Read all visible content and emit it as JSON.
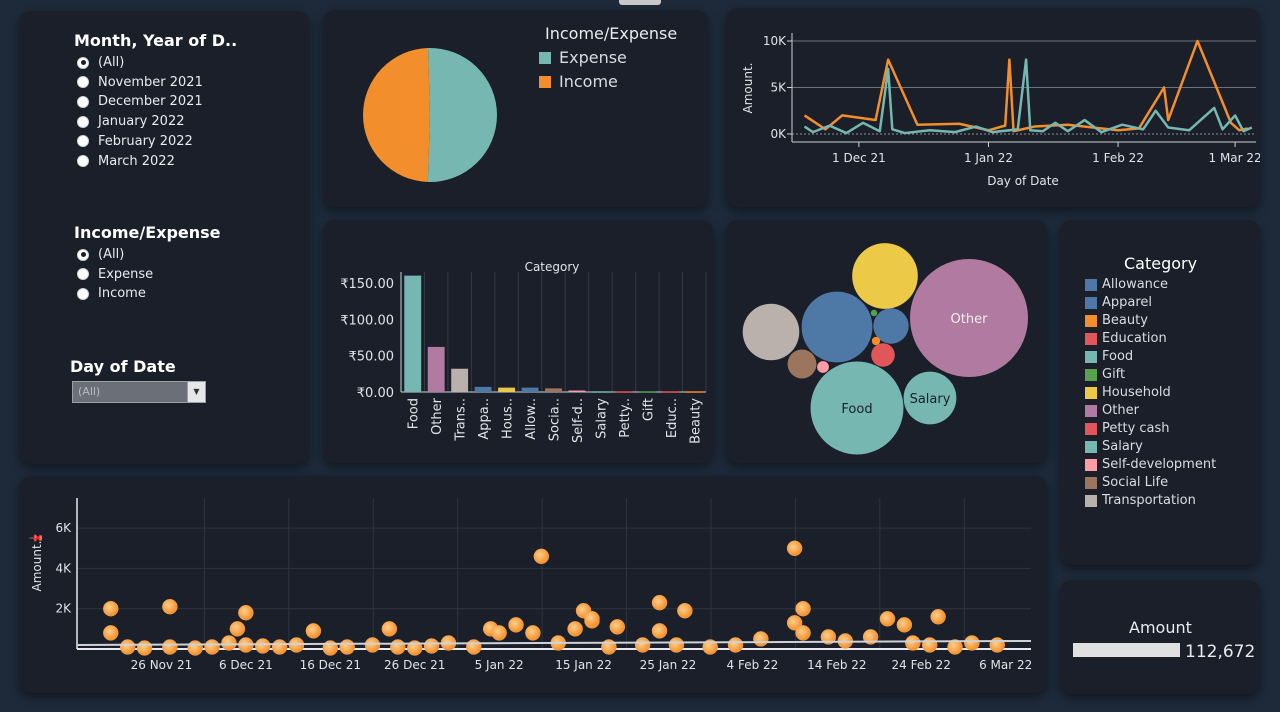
{
  "filters": {
    "month": {
      "title": "Month, Year of D..",
      "options": [
        "(All)",
        "November 2021",
        "December 2021",
        "January 2022",
        "February 2022",
        "March 2022"
      ],
      "selected": "(All)"
    },
    "income_expense": {
      "title": "Income/Expense",
      "options": [
        "(All)",
        "Expense",
        "Income"
      ],
      "selected": "(All)"
    },
    "day_of_date": {
      "title": "Day of Date",
      "value": "(All)"
    }
  },
  "pie": {
    "legend_title": "Income/Expense",
    "legend": [
      {
        "label": "Expense",
        "color": "#76b7b2"
      },
      {
        "label": "Income",
        "color": "#f28e2b"
      }
    ]
  },
  "category_legend": {
    "title": "Category",
    "items": [
      {
        "label": "Allowance",
        "color": "#4e79a7"
      },
      {
        "label": "Apparel",
        "color": "#4e79a7"
      },
      {
        "label": "Beauty",
        "color": "#f28e2b"
      },
      {
        "label": "Education",
        "color": "#e15759"
      },
      {
        "label": "Food",
        "color": "#76b7b2"
      },
      {
        "label": "Gift",
        "color": "#59a14f"
      },
      {
        "label": "Household",
        "color": "#edc948"
      },
      {
        "label": "Other",
        "color": "#b07aa1"
      },
      {
        "label": "Petty cash",
        "color": "#e15759"
      },
      {
        "label": "Salary",
        "color": "#76b7b2"
      },
      {
        "label": "Self-development",
        "color": "#ff9da7"
      },
      {
        "label": "Social Life",
        "color": "#9c755f"
      },
      {
        "label": "Transportation",
        "color": "#bab0ac"
      }
    ]
  },
  "kpi": {
    "title": "Amount",
    "value": "112,672",
    "fill_fraction": 1.0
  },
  "chart_data": [
    {
      "type": "pie",
      "series": [
        {
          "name": "Expense",
          "value": 51,
          "color": "#76b7b2"
        },
        {
          "name": "Income",
          "value": 49,
          "color": "#f28e2b"
        }
      ]
    },
    {
      "type": "line",
      "ylabel": "Amount.",
      "xlabel": "Day of Date",
      "yticks": [
        "0K",
        "5K",
        "10K"
      ],
      "ylim": [
        0,
        10000
      ],
      "xticks": [
        "1 Dec 21",
        "1 Jan 22",
        "1 Feb 22",
        "1 Mar 22"
      ],
      "xlim": [
        "2021-11-15",
        "2022-03-06"
      ],
      "series": [
        {
          "name": "Income",
          "color": "#f28e2b",
          "points": [
            [
              "2021-11-18",
              2000
            ],
            [
              "2021-11-23",
              500
            ],
            [
              "2021-11-27",
              2000
            ],
            [
              "2021-12-05",
              1500
            ],
            [
              "2021-12-08",
              8000
            ],
            [
              "2021-12-15",
              1000
            ],
            [
              "2021-12-25",
              1100
            ],
            [
              "2022-01-01",
              400
            ],
            [
              "2022-01-05",
              900
            ],
            [
              "2022-01-06",
              8000
            ],
            [
              "2022-01-07",
              300
            ],
            [
              "2022-01-12",
              800
            ],
            [
              "2022-01-20",
              1000
            ],
            [
              "2022-02-01",
              400
            ],
            [
              "2022-02-06",
              600
            ],
            [
              "2022-02-12",
              5000
            ],
            [
              "2022-02-13",
              1500
            ],
            [
              "2022-02-20",
              10000
            ],
            [
              "2022-02-28",
              1200
            ],
            [
              "2022-03-02",
              400
            ],
            [
              "2022-03-04",
              600
            ]
          ]
        },
        {
          "name": "Expense",
          "color": "#76b7b2",
          "points": [
            [
              "2021-11-18",
              800
            ],
            [
              "2021-11-20",
              200
            ],
            [
              "2021-11-24",
              900
            ],
            [
              "2021-11-28",
              100
            ],
            [
              "2021-12-02",
              1200
            ],
            [
              "2021-12-06",
              300
            ],
            [
              "2021-12-08",
              7000
            ],
            [
              "2021-12-09",
              500
            ],
            [
              "2021-12-12",
              100
            ],
            [
              "2021-12-18",
              400
            ],
            [
              "2021-12-24",
              200
            ],
            [
              "2021-12-29",
              800
            ],
            [
              "2022-01-02",
              200
            ],
            [
              "2022-01-08",
              500
            ],
            [
              "2022-01-10",
              8000
            ],
            [
              "2022-01-11",
              400
            ],
            [
              "2022-01-14",
              300
            ],
            [
              "2022-01-17",
              1200
            ],
            [
              "2022-01-20",
              300
            ],
            [
              "2022-01-24",
              1500
            ],
            [
              "2022-01-28",
              200
            ],
            [
              "2022-02-02",
              1000
            ],
            [
              "2022-02-07",
              500
            ],
            [
              "2022-02-10",
              2500
            ],
            [
              "2022-02-13",
              700
            ],
            [
              "2022-02-18",
              400
            ],
            [
              "2022-02-24",
              2800
            ],
            [
              "2022-02-26",
              500
            ],
            [
              "2022-03-01",
              2000
            ],
            [
              "2022-03-03",
              300
            ],
            [
              "2022-03-05",
              700
            ]
          ]
        }
      ]
    },
    {
      "type": "bar",
      "title": "Category",
      "categories": [
        "Food",
        "Other",
        "Trans..",
        "Appa..",
        "Hous..",
        "Allow..",
        "Socia..",
        "Self-d..",
        "Salary",
        "Petty..",
        "Gift",
        "Educ..",
        "Beauty"
      ],
      "values": [
        160,
        62,
        32,
        7,
        6,
        6,
        5,
        2,
        1,
        1,
        1,
        1,
        1
      ],
      "colors": [
        "#76b7b2",
        "#b07aa1",
        "#bab0ac",
        "#4e79a7",
        "#edc948",
        "#4e79a7",
        "#9c755f",
        "#ff9da7",
        "#76b7b2",
        "#e15759",
        "#59a14f",
        "#e15759",
        "#f28e2b"
      ],
      "yticks": [
        "₹0.00",
        "₹50.00",
        "₹100.00",
        "₹150.00"
      ],
      "ylim": [
        0,
        165
      ]
    },
    {
      "type": "bubble",
      "items": [
        {
          "name": "Other",
          "value": 100,
          "color": "#b07aa1",
          "label": "Other"
        },
        {
          "name": "Food",
          "value": 62,
          "color": "#76b7b2",
          "label": "Food"
        },
        {
          "name": "Allowance",
          "value": 36,
          "color": "#4e79a7",
          "label": ""
        },
        {
          "name": "Transportation",
          "value": 23,
          "color": "#bab0ac",
          "label": ""
        },
        {
          "name": "Household",
          "value": 31,
          "color": "#edc948",
          "label": ""
        },
        {
          "name": "Salary",
          "value": 20,
          "color": "#76b7b2",
          "label": "Salary"
        },
        {
          "name": "Apparel",
          "value": 9,
          "color": "#4e79a7",
          "label": ""
        },
        {
          "name": "Social Life",
          "value": 6,
          "color": "#9c755f",
          "label": ""
        },
        {
          "name": "Education",
          "value": 4,
          "color": "#e15759",
          "label": ""
        },
        {
          "name": "Self-development",
          "value": 1,
          "color": "#ff9da7",
          "label": ""
        },
        {
          "name": "Beauty",
          "value": 0.5,
          "color": "#f28e2b",
          "label": ""
        },
        {
          "name": "Gift",
          "value": 0.3,
          "color": "#59a14f",
          "label": ""
        }
      ]
    },
    {
      "type": "scatter",
      "ylabel": "Amount.",
      "yticks": [
        "2K",
        "4K",
        "6K"
      ],
      "ylim": [
        0,
        7000
      ],
      "xticks": [
        "26 Nov 21",
        "6 Dec 21",
        "16 Dec 21",
        "26 Dec 21",
        "5 Jan 22",
        "15 Jan 22",
        "25 Jan 22",
        "4 Feb 22",
        "14 Feb 22",
        "24 Feb 22",
        "6 Mar 22"
      ],
      "xlim": [
        "2021-11-16",
        "2022-03-09"
      ],
      "color": "#f28e2b",
      "trend": {
        "start": 200,
        "end": 400
      },
      "points": [
        [
          "2021-11-20",
          2000
        ],
        [
          "2021-11-20",
          800
        ],
        [
          "2021-11-22",
          100
        ],
        [
          "2021-11-24",
          50
        ],
        [
          "2021-11-27",
          100
        ],
        [
          "2021-11-27",
          2100
        ],
        [
          "2021-11-30",
          50
        ],
        [
          "2021-12-02",
          100
        ],
        [
          "2021-12-04",
          300
        ],
        [
          "2021-12-05",
          1000
        ],
        [
          "2021-12-06",
          200
        ],
        [
          "2021-12-06",
          1800
        ],
        [
          "2021-12-08",
          150
        ],
        [
          "2021-12-10",
          100
        ],
        [
          "2021-12-12",
          200
        ],
        [
          "2021-12-14",
          900
        ],
        [
          "2021-12-16",
          50
        ],
        [
          "2021-12-18",
          100
        ],
        [
          "2021-12-21",
          200
        ],
        [
          "2021-12-23",
          1000
        ],
        [
          "2021-12-24",
          100
        ],
        [
          "2021-12-26",
          50
        ],
        [
          "2021-12-28",
          150
        ],
        [
          "2021-12-30",
          300
        ],
        [
          "2022-01-02",
          100
        ],
        [
          "2022-01-04",
          1000
        ],
        [
          "2022-01-05",
          800
        ],
        [
          "2022-01-07",
          1200
        ],
        [
          "2022-01-09",
          800
        ],
        [
          "2022-01-10",
          4600
        ],
        [
          "2022-01-12",
          300
        ],
        [
          "2022-01-14",
          1000
        ],
        [
          "2022-01-15",
          1900
        ],
        [
          "2022-01-16",
          1400
        ],
        [
          "2022-01-16",
          1500
        ],
        [
          "2022-01-18",
          100
        ],
        [
          "2022-01-19",
          1100
        ],
        [
          "2022-01-22",
          200
        ],
        [
          "2022-01-24",
          900
        ],
        [
          "2022-01-24",
          2300
        ],
        [
          "2022-01-26",
          200
        ],
        [
          "2022-01-27",
          1900
        ],
        [
          "2022-01-30",
          100
        ],
        [
          "2022-02-02",
          200
        ],
        [
          "2022-02-05",
          500
        ],
        [
          "2022-02-09",
          5000
        ],
        [
          "2022-02-09",
          1300
        ],
        [
          "2022-02-10",
          2000
        ],
        [
          "2022-02-10",
          800
        ],
        [
          "2022-02-13",
          600
        ],
        [
          "2022-02-15",
          400
        ],
        [
          "2022-02-18",
          600
        ],
        [
          "2022-02-20",
          1500
        ],
        [
          "2022-02-22",
          1200
        ],
        [
          "2022-02-23",
          300
        ],
        [
          "2022-02-25",
          200
        ],
        [
          "2022-02-26",
          1600
        ],
        [
          "2022-02-28",
          100
        ],
        [
          "2022-03-02",
          300
        ],
        [
          "2022-03-05",
          200
        ]
      ]
    }
  ]
}
